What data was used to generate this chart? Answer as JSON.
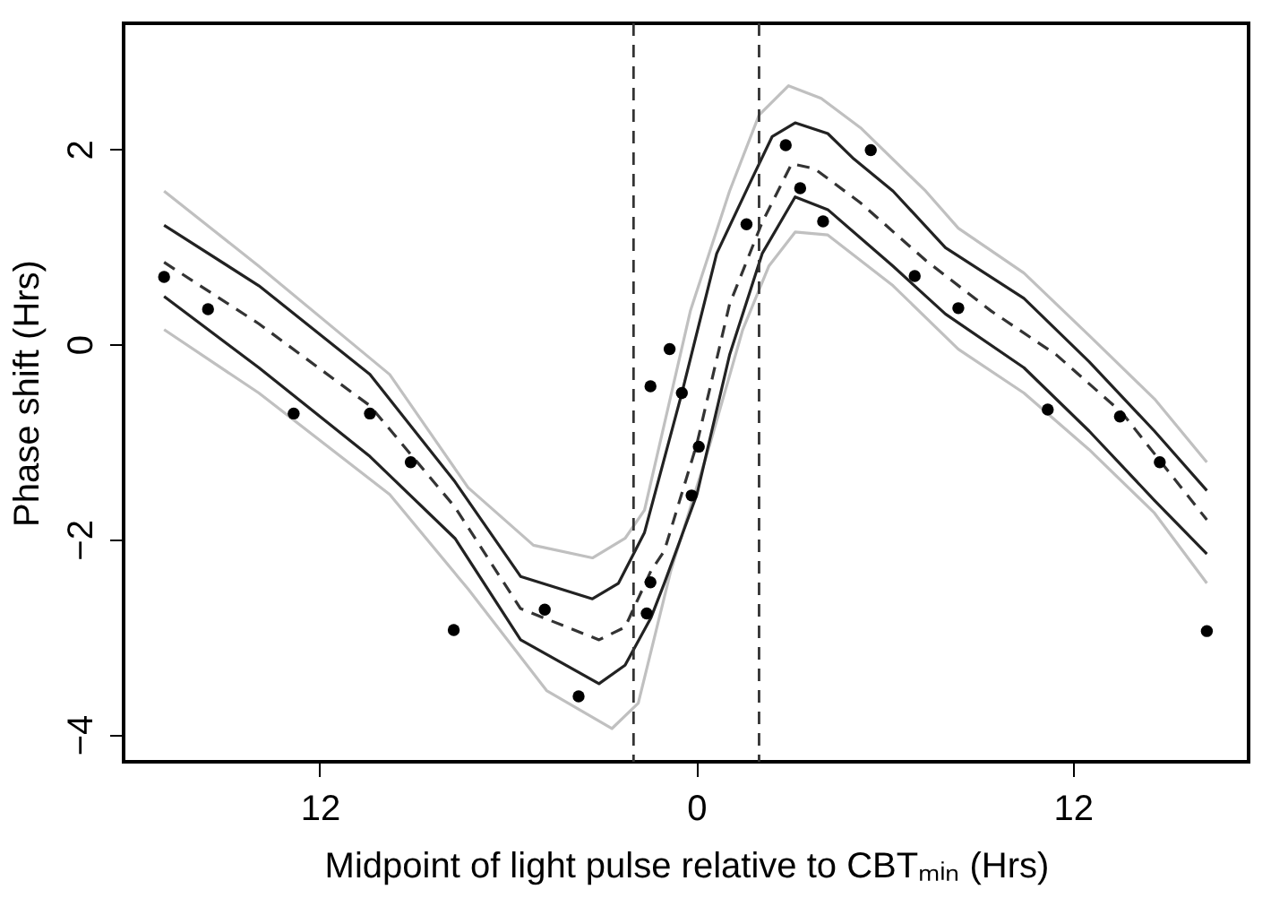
{
  "chart_data": {
    "type": "scatter",
    "xlabel": "Midpoint of light pulse relative to CBTₘᵢₙ (Hrs)",
    "ylabel": "Phase shift (Hrs)",
    "xlim": [
      -18.25,
      17.6
    ],
    "xticks": [
      {
        "value": -12,
        "label": "12"
      },
      0,
      12
    ],
    "ylim": [
      -4.28,
      3.29
    ],
    "yticks": [
      -4,
      -2,
      0,
      2
    ],
    "grid": false,
    "marker": "circle",
    "ref_lines": [
      {
        "axis": "x",
        "value": -2,
        "color": "#333333",
        "line_style": "dashed"
      },
      {
        "axis": "x",
        "value": 2,
        "color": "#333333",
        "line_style": "dashed"
      }
    ],
    "series": [
      {
        "type": "line",
        "marker": "none",
        "color": "#c0c0c0",
        "line_style": "solid",
        "x": [
          -16.96,
          -13.94,
          -9.77,
          -7.27,
          -5.19,
          -3.31,
          -2.27,
          -1.65,
          -0.19,
          1.06,
          2.0,
          2.94,
          3.98,
          5.23,
          7.31,
          8.35,
          10.44,
          12.52,
          14.6,
          16.27
        ],
        "values": [
          1.57,
          0.8,
          -0.31,
          -1.47,
          -2.06,
          -2.19,
          -1.99,
          -1.7,
          0.34,
          1.57,
          2.35,
          2.65,
          2.52,
          2.22,
          1.57,
          1.19,
          0.73,
          0.09,
          -0.56,
          -1.21
        ]
      },
      {
        "type": "line",
        "marker": "none",
        "color": "#c0c0c0",
        "line_style": "solid",
        "x": [
          -16.96,
          -13.94,
          -9.77,
          -7.27,
          -4.77,
          -2.69,
          -1.85,
          -0.81,
          0.44,
          1.48,
          2.31,
          3.15,
          4.19,
          6.27,
          8.35,
          10.44,
          12.52,
          14.6,
          16.27
        ],
        "values": [
          0.15,
          -0.5,
          -1.54,
          -2.51,
          -3.55,
          -3.94,
          -3.68,
          -2.32,
          -1.02,
          0.15,
          0.8,
          1.15,
          1.12,
          0.6,
          -0.05,
          -0.5,
          -1.08,
          -1.73,
          -2.45
        ]
      },
      {
        "type": "line",
        "marker": "none",
        "color": "#222222",
        "line_style": "solid",
        "x": [
          -16.96,
          -13.94,
          -10.4,
          -7.69,
          -5.6,
          -3.31,
          -2.48,
          -1.65,
          -0.46,
          0.65,
          1.69,
          2.42,
          3.15,
          4.19,
          5.02,
          6.27,
          7.94,
          10.44,
          12.52,
          14.6,
          16.27
        ],
        "values": [
          1.22,
          0.6,
          -0.31,
          -1.41,
          -2.38,
          -2.61,
          -2.45,
          -1.93,
          -0.5,
          0.93,
          1.64,
          2.13,
          2.27,
          2.16,
          1.9,
          1.57,
          0.99,
          0.47,
          -0.18,
          -0.89,
          -1.5
        ]
      },
      {
        "type": "line",
        "marker": "none",
        "color": "#222222",
        "line_style": "solid",
        "x": [
          -16.96,
          -13.94,
          -10.4,
          -7.69,
          -5.6,
          -3.1,
          -2.27,
          -1.44,
          -1.02,
          0.02,
          1.06,
          2.1,
          3.15,
          4.19,
          6.27,
          7.94,
          10.44,
          12.52,
          14.6,
          16.27
        ],
        "values": [
          0.49,
          -0.24,
          -1.15,
          -1.99,
          -3.03,
          -3.48,
          -3.29,
          -2.8,
          -2.45,
          -1.54,
          -0.11,
          0.93,
          1.51,
          1.38,
          0.8,
          0.31,
          -0.24,
          -0.89,
          -1.6,
          -2.15
        ]
      },
      {
        "type": "line",
        "marker": "none",
        "color": "#333333",
        "line_style": "dashed",
        "x": [
          -16.96,
          -13.94,
          -10.4,
          -7.69,
          -5.6,
          -3.1,
          -2.27,
          -1.44,
          -1.02,
          0.02,
          1.06,
          2.1,
          3.04,
          3.77,
          5.23,
          7.31,
          9.4,
          11.48,
          13.56,
          16.27
        ],
        "values": [
          0.84,
          0.21,
          -0.63,
          -1.67,
          -2.71,
          -3.03,
          -2.9,
          -2.32,
          -2.12,
          -1.02,
          0.41,
          1.25,
          1.85,
          1.8,
          1.45,
          0.86,
          0.34,
          -0.11,
          -0.7,
          -1.8
        ]
      },
      {
        "color": "#000000",
        "x": [
          -16.96,
          -15.56,
          -12.83,
          -10.4,
          -9.1,
          -7.73,
          -4.83,
          -3.75,
          -1.58,
          -1.46,
          -1.46,
          -0.85,
          -0.46,
          0.08,
          -0.15,
          1.6,
          2.85,
          3.31,
          4.04,
          5.56,
          6.96,
          8.35,
          11.2,
          13.5,
          14.77,
          16.27
        ],
        "values": [
          0.69,
          0.36,
          -0.71,
          -0.71,
          -1.21,
          -2.93,
          -2.72,
          -3.61,
          -2.76,
          -2.44,
          -0.43,
          -0.05,
          -0.5,
          -1.05,
          -1.55,
          1.23,
          2.04,
          1.6,
          1.26,
          1.99,
          0.7,
          0.37,
          -0.67,
          -0.74,
          -1.21,
          -2.94
        ]
      }
    ]
  }
}
